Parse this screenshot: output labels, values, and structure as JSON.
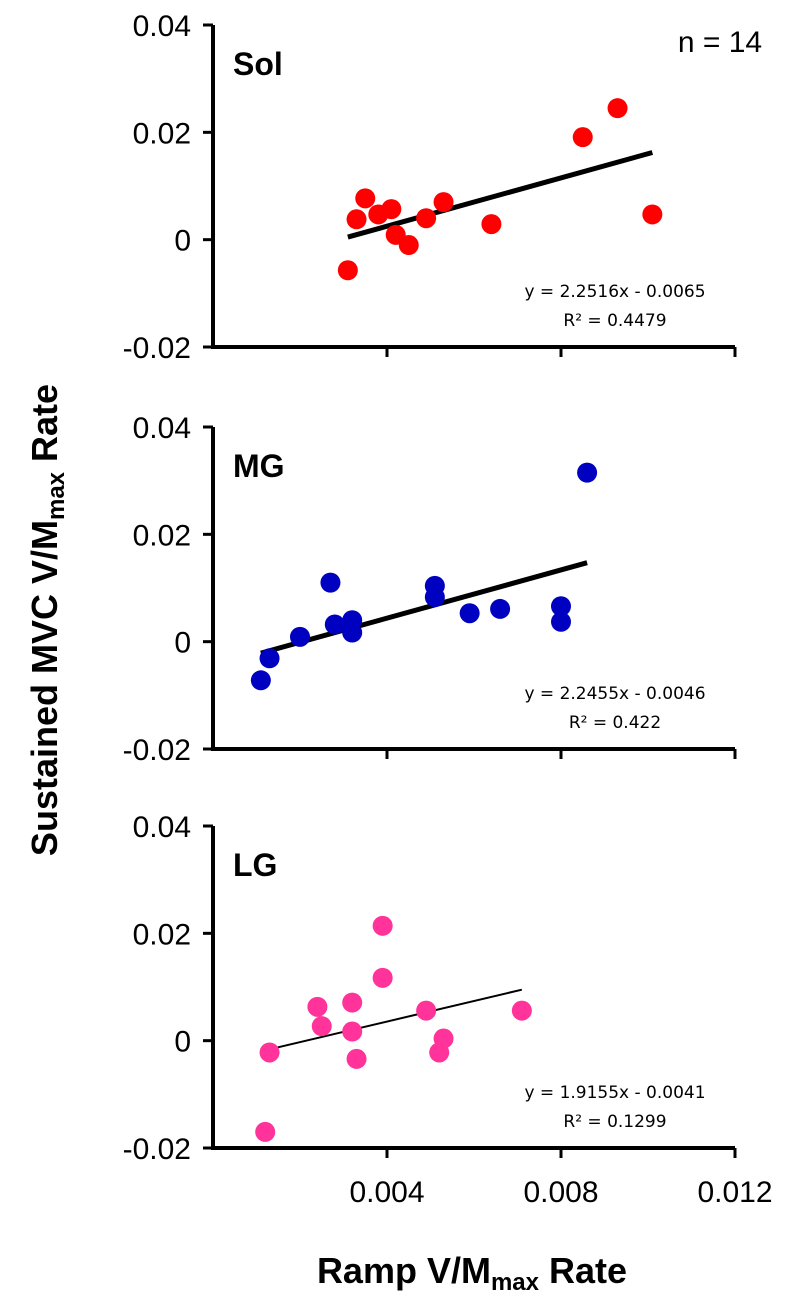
{
  "chart_data": {
    "type": "scatter",
    "xlabel": "Ramp V/Mmax Rate",
    "ylabel": "Sustained MVC V/Mmax Rate",
    "x_ticks": [
      "0.004",
      "0.008",
      "0.012"
    ],
    "y_ticks": [
      "-0.02",
      "0",
      "0.02",
      "0.04"
    ],
    "xlim": [
      0,
      0.012
    ],
    "ylim": [
      -0.02,
      0.04
    ],
    "annotation": "n = 14",
    "panels": [
      {
        "label": "Sol",
        "color": "#ff0000",
        "equation": "y = 2.2516x - 0.0065",
        "r2": "R² = 0.4479",
        "trend": {
          "slope": 2.2516,
          "intercept": -0.0065,
          "x_range": [
            0.0031,
            0.0101
          ],
          "stroke": "thick"
        },
        "points": [
          {
            "x": 0.0031,
            "y": -0.0057
          },
          {
            "x": 0.0033,
            "y": 0.0038
          },
          {
            "x": 0.0035,
            "y": 0.0077
          },
          {
            "x": 0.0038,
            "y": 0.0047
          },
          {
            "x": 0.0041,
            "y": 0.0057
          },
          {
            "x": 0.0042,
            "y": 0.0009
          },
          {
            "x": 0.0045,
            "y": -0.001
          },
          {
            "x": 0.0049,
            "y": 0.004
          },
          {
            "x": 0.0053,
            "y": 0.007
          },
          {
            "x": 0.0064,
            "y": 0.0029
          },
          {
            "x": 0.0085,
            "y": 0.0191
          },
          {
            "x": 0.0093,
            "y": 0.0245
          },
          {
            "x": 0.0101,
            "y": 0.0047
          }
        ]
      },
      {
        "label": "MG",
        "color": "#0000c0",
        "equation": "y = 2.2455x - 0.0046",
        "r2": "R² = 0.422",
        "trend": {
          "slope": 2.2455,
          "intercept": -0.0046,
          "x_range": [
            0.0011,
            0.0086
          ],
          "stroke": "thick"
        },
        "points": [
          {
            "x": 0.0011,
            "y": -0.0072
          },
          {
            "x": 0.0013,
            "y": -0.0031
          },
          {
            "x": 0.002,
            "y": 0.0009
          },
          {
            "x": 0.0027,
            "y": 0.011
          },
          {
            "x": 0.0028,
            "y": 0.0032
          },
          {
            "x": 0.0032,
            "y": 0.004
          },
          {
            "x": 0.0032,
            "y": 0.0017
          },
          {
            "x": 0.0051,
            "y": 0.0104
          },
          {
            "x": 0.0051,
            "y": 0.0083
          },
          {
            "x": 0.0059,
            "y": 0.0053
          },
          {
            "x": 0.0066,
            "y": 0.0061
          },
          {
            "x": 0.008,
            "y": 0.0066
          },
          {
            "x": 0.008,
            "y": 0.0037
          },
          {
            "x": 0.0086,
            "y": 0.0315
          }
        ]
      },
      {
        "label": "LG",
        "color": "#ff3399",
        "equation": "y = 1.9155x - 0.0041",
        "r2": "R² = 0.1299",
        "trend": {
          "slope": 1.9155,
          "intercept": -0.0041,
          "x_range": [
            0.0013,
            0.0071
          ],
          "stroke": "thin"
        },
        "points": [
          {
            "x": 0.0012,
            "y": -0.017
          },
          {
            "x": 0.0013,
            "y": -0.0022
          },
          {
            "x": 0.0024,
            "y": 0.0063
          },
          {
            "x": 0.0025,
            "y": 0.0027
          },
          {
            "x": 0.0032,
            "y": 0.0071
          },
          {
            "x": 0.0032,
            "y": 0.0017
          },
          {
            "x": 0.0033,
            "y": -0.0034
          },
          {
            "x": 0.0039,
            "y": 0.0214
          },
          {
            "x": 0.0039,
            "y": 0.0117
          },
          {
            "x": 0.0049,
            "y": 0.0056
          },
          {
            "x": 0.0052,
            "y": -0.0022
          },
          {
            "x": 0.0053,
            "y": 0.0004
          },
          {
            "x": 0.0071,
            "y": 0.0056
          }
        ]
      }
    ]
  }
}
